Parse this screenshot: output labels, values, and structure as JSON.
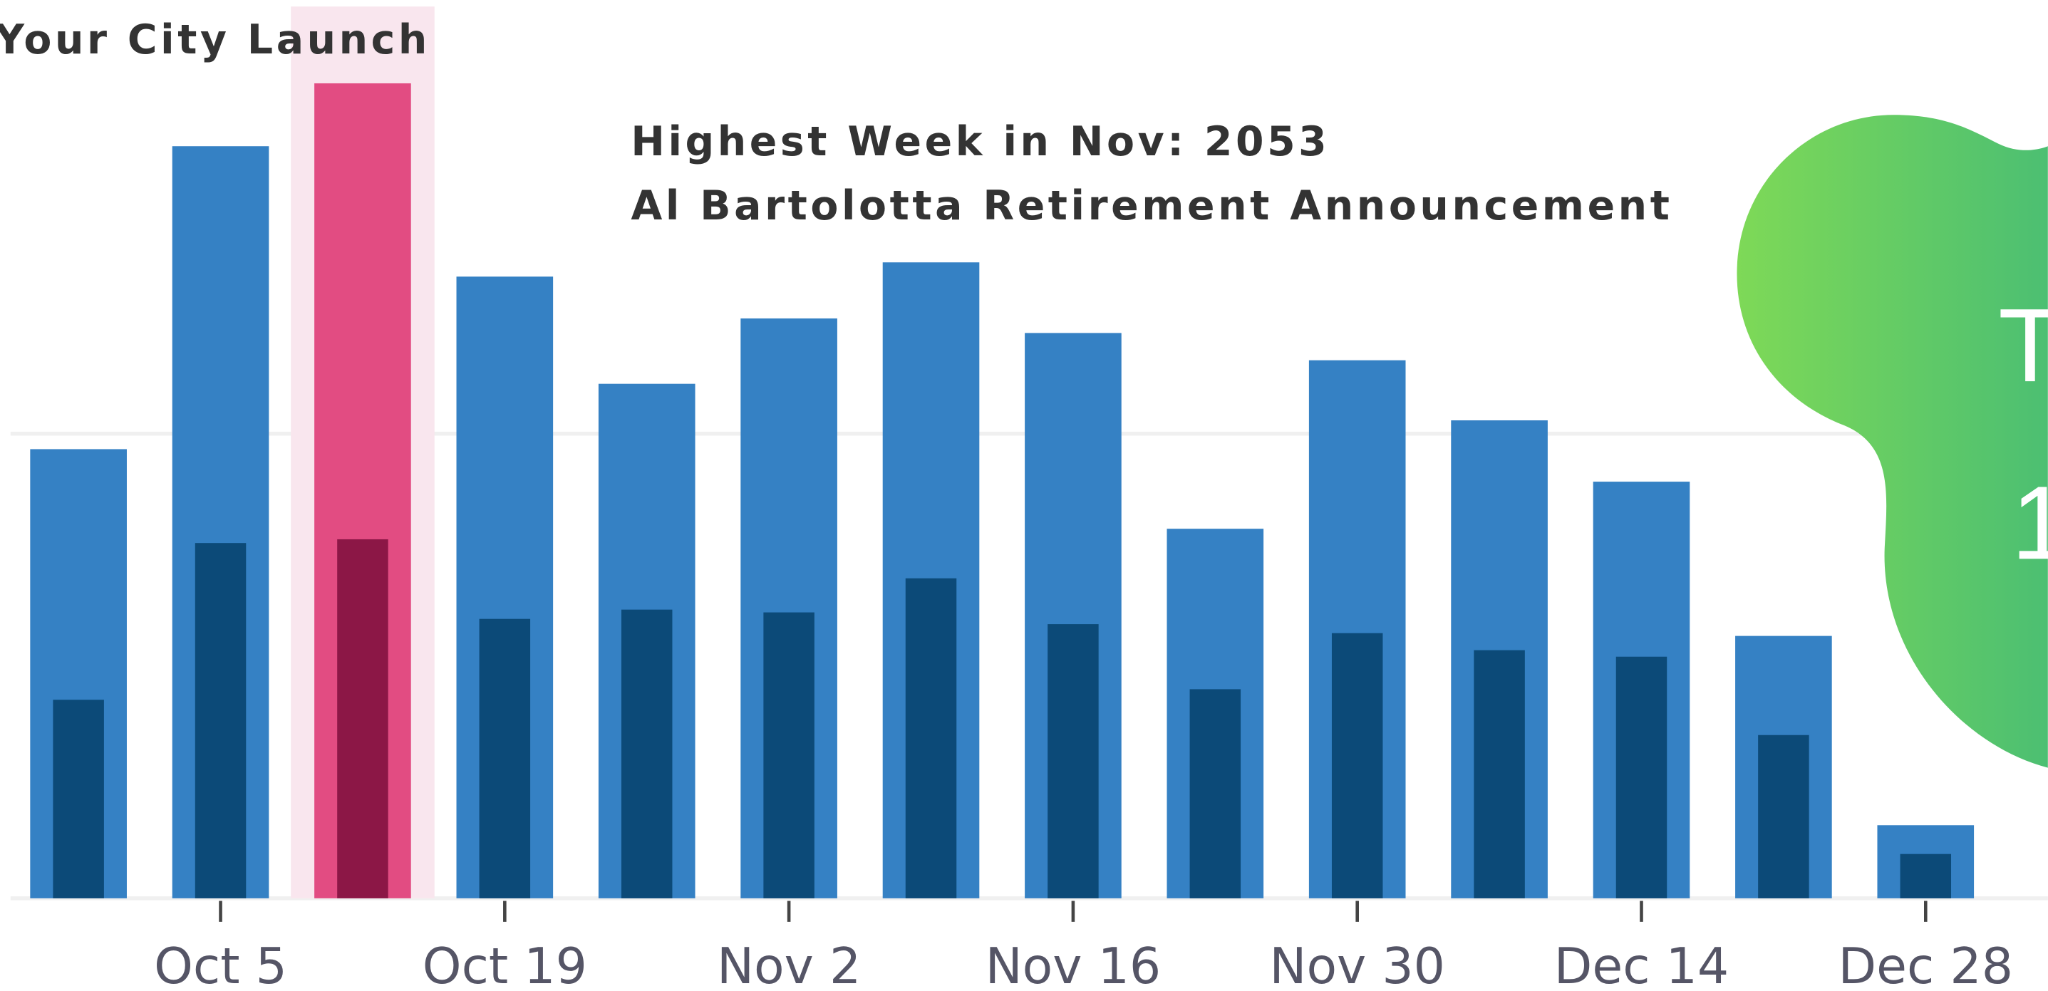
{
  "chart_data": {
    "type": "bar",
    "categories": [
      null,
      "Oct 5",
      null,
      "Oct 19",
      null,
      "Nov 2",
      null,
      "Nov 16",
      null,
      "Nov 30",
      null,
      "Dec 14",
      null,
      "Dec 28"
    ],
    "series": [
      {
        "color": "#3581c4",
        "values": [
          1450,
          2428,
          2631,
          2007,
          1661,
          1872,
          2053,
          1825,
          1193,
          1737,
          1543,
          1345,
          847,
          236
        ]
      },
      {
        "color": "#0c4a78",
        "values": [
          641,
          1147,
          1159,
          902,
          932,
          923,
          1033,
          885,
          675,
          856,
          801,
          780,
          527,
          143
        ]
      }
    ],
    "highlight": {
      "index": 2,
      "band_color": "#f9e6ee",
      "colors": [
        "#e24c82",
        "#8c1746"
      ]
    },
    "ylim": [
      0,
      2900
    ],
    "yticks": [
      0,
      1500
    ],
    "grid": true,
    "annotations": [
      "Your City Launch",
      "Highest Week in Nov: 2053",
      "Al Bartolotta Retirement Announcement"
    ],
    "badge_text": [
      "T",
      "1"
    ]
  }
}
